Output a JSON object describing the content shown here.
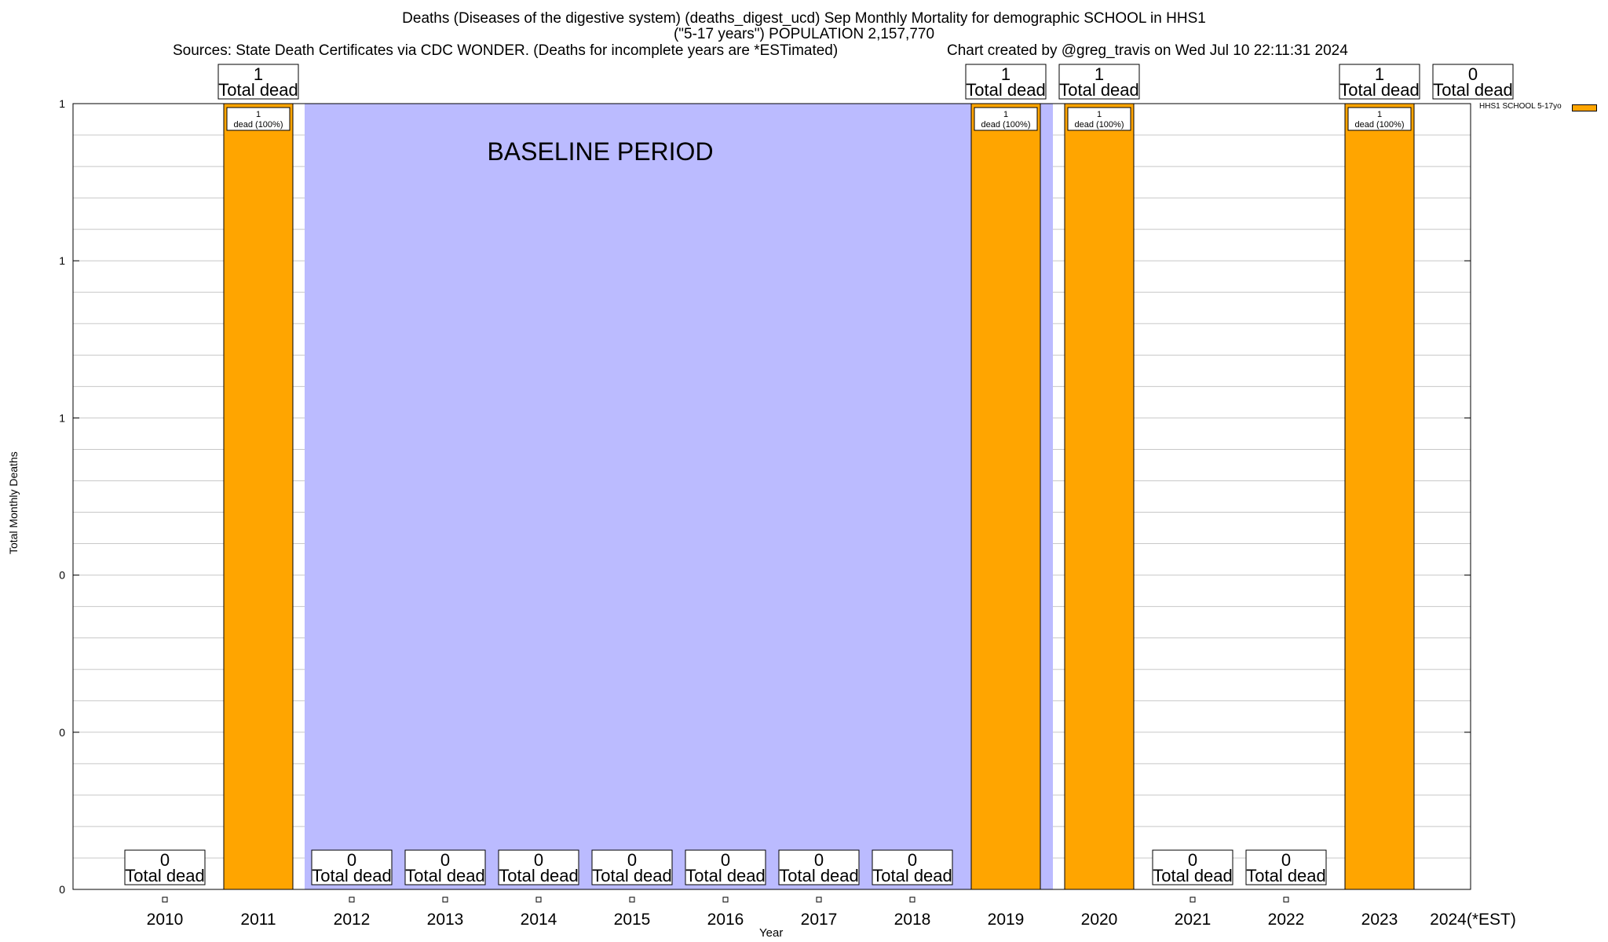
{
  "header": {
    "title_line1": "Deaths (Diseases of the digestive system) (deaths_digest_ucd) Sep Monthly Mortality for demographic SCHOOL in HHS1",
    "title_line2": "(\"5-17 years\") POPULATION 2,157,770",
    "sources": "Sources: State Death Certificates via CDC WONDER. (Deaths for incomplete years are *ESTimated)",
    "credit": "Chart created by @greg_travis on Wed Jul 10 22:11:31 2024"
  },
  "colors": {
    "bar": "#FFA500",
    "baseline_band": "#BBBBFF",
    "grid": "#C8C8C8"
  },
  "chart_data": {
    "type": "bar",
    "title": "Deaths (Diseases of the digestive system) (deaths_digest_ucd) Sep Monthly Mortality for demographic SCHOOL in HHS1",
    "xlabel": "Year",
    "ylabel": "Total Monthly Deaths",
    "categories": [
      "2010",
      "2011",
      "2012",
      "2013",
      "2014",
      "2015",
      "2016",
      "2017",
      "2018",
      "2019",
      "2020",
      "2021",
      "2022",
      "2023",
      "2024(*EST)"
    ],
    "ylim": [
      0,
      1
    ],
    "y_tick_labels": [
      "0",
      "0",
      "0",
      "1",
      "1",
      "1"
    ],
    "grid": true,
    "legend_position": "top-right",
    "series": [
      {
        "name": "HHS1 SCHOOL 5-17yo",
        "color": "#FFA500",
        "values": [
          0,
          1,
          0,
          0,
          0,
          0,
          0,
          0,
          0,
          1,
          1,
          0,
          0,
          1,
          0
        ],
        "bar_labels": [
          "",
          "1\ndead (100%)",
          "",
          "",
          "",
          "",
          "",
          "",
          "",
          "1\ndead (100%)",
          "1\ndead (100%)",
          "",
          "",
          "1\ndead (100%)",
          ""
        ]
      }
    ],
    "totals": [
      0,
      1,
      0,
      0,
      0,
      0,
      0,
      0,
      0,
      1,
      1,
      0,
      0,
      1,
      0
    ],
    "total_label_suffix": "Total dead",
    "baseline_period": {
      "label": "BASELINE PERIOD",
      "from_year": 2012,
      "to_year": 2019
    }
  }
}
